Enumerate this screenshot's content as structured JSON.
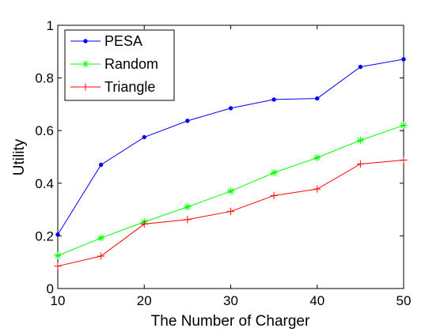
{
  "chart_data": {
    "type": "line",
    "title": "",
    "xlabel": "The Number of Charger",
    "ylabel": "Utility",
    "xlim": [
      10,
      50
    ],
    "ylim": [
      0,
      1
    ],
    "x_ticks": [
      10,
      20,
      30,
      40,
      50
    ],
    "x_tick_labels": [
      "10",
      "20",
      "30",
      "40",
      "50"
    ],
    "y_ticks": [
      0,
      0.2,
      0.4,
      0.6,
      0.8,
      1
    ],
    "y_tick_labels": [
      "0",
      "0.2",
      "0.4",
      "0.6",
      "0.8",
      "1"
    ],
    "grid": false,
    "legend_placement": "top-left",
    "x": [
      10,
      15,
      20,
      25,
      30,
      35,
      40,
      45,
      50
    ],
    "series": [
      {
        "name": "PESA",
        "color": "#0000ff",
        "marker": "dot",
        "values": [
          0.205,
          0.47,
          0.575,
          0.637,
          0.685,
          0.718,
          0.722,
          0.842,
          0.871
        ]
      },
      {
        "name": "Random",
        "color": "#00ff00",
        "marker": "asterisk",
        "values": [
          0.125,
          0.192,
          0.253,
          0.31,
          0.37,
          0.44,
          0.497,
          0.563,
          0.62
        ]
      },
      {
        "name": "Triangle",
        "color": "#ff0000",
        "marker": "plus",
        "values": [
          0.085,
          0.123,
          0.245,
          0.262,
          0.293,
          0.353,
          0.378,
          0.473,
          0.488
        ]
      }
    ]
  }
}
